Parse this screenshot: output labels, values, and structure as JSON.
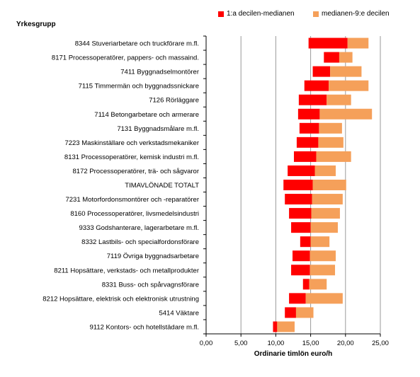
{
  "chart_data": {
    "type": "bar",
    "stacked": true,
    "orientation": "horizontal",
    "ylabel": "Yrkesgrupp",
    "xlabel": "Ordinarie timlön euro/h",
    "xlim": [
      0,
      25
    ],
    "xticks": [
      "0,00",
      "5,00",
      "10,00",
      "15,00",
      "20,00",
      "25,00"
    ],
    "grid": true,
    "legend_position": "top-right",
    "categories": [
      "8344  Stuveriarbetare och truckförare m.fl.",
      "8171  Processoperatörer, pappers- och massaind.",
      "7411  Byggnadselmontörer",
      "7115  Timmermän och byggnadssnickare",
      "7126  Rörläggare",
      "7114  Betongarbetare och armerare",
      "7131  Byggnadsmålare m.fl.",
      "7223  Maskinställare och verkstadsmekaniker",
      "8131  Processoperatörer, kemisk industri m.fl.",
      "8172  Processoperatörer, trä- och sågvaror",
      "TIMAVLÖNADE TOTALT",
      "7231  Motorfordonsmontörer och -reparatörer",
      "8160  Processoperatörer, livsmedelsindustri",
      "9333  Godshanterare, lagerarbetare m.fl.",
      "8332  Lastbils- och specialfordonsförare",
      "7119  Övriga byggnadsarbetare",
      "8211  Hopsättare, verkstads- och metallprodukter",
      "8331  Buss- och spårvagnsförare",
      "8212  Hopsättare, elektrisk och elektronisk utrustning",
      "5414  Väktare",
      "9112  Kontors- och hotellstädare m.fl."
    ],
    "series": [
      {
        "name": "1:a decilen-medianen",
        "color": "#ff0000",
        "start": [
          14.7,
          16.9,
          15.3,
          14.1,
          13.3,
          13.2,
          13.4,
          13.0,
          12.6,
          11.7,
          11.1,
          11.3,
          11.9,
          12.2,
          13.5,
          12.4,
          12.2,
          13.9,
          11.9,
          11.3,
          9.6
        ],
        "end": [
          20.3,
          19.1,
          17.8,
          17.6,
          17.3,
          16.3,
          16.2,
          16.1,
          15.8,
          15.6,
          15.3,
          15.2,
          15.1,
          15.0,
          15.0,
          14.9,
          14.9,
          14.8,
          14.3,
          12.9,
          10.2
        ]
      },
      {
        "name": "medianen-9:e decilen",
        "color": "#f5a05a",
        "start": [
          20.3,
          19.1,
          17.8,
          17.6,
          17.3,
          16.3,
          16.2,
          16.1,
          15.8,
          15.6,
          15.3,
          15.2,
          15.1,
          15.0,
          15.0,
          14.9,
          14.9,
          14.8,
          14.3,
          12.9,
          10.2
        ],
        "end": [
          23.3,
          21.0,
          22.3,
          23.3,
          20.8,
          23.8,
          19.5,
          19.7,
          20.8,
          18.6,
          20.1,
          19.6,
          19.2,
          18.9,
          17.7,
          18.6,
          18.5,
          17.3,
          19.6,
          15.4,
          12.7
        ]
      }
    ]
  }
}
